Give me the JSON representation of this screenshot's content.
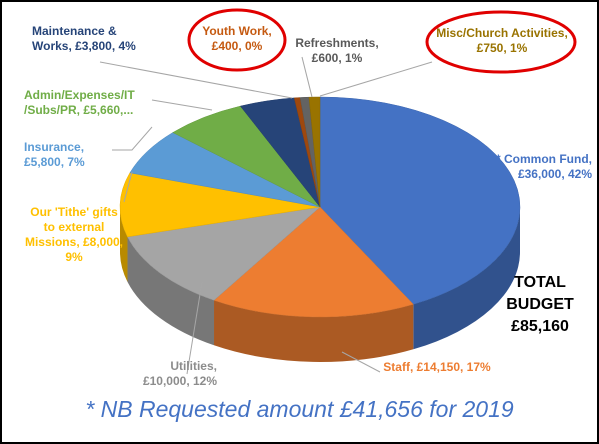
{
  "chart_data": {
    "type": "pie3d",
    "labels": [
      "* Common Fund, £36,000, 42%",
      "Staff, £14,150, 17%",
      "Utilities, £10,000, 12%",
      "Our 'Tithe' gifts to external Missions, £8,000, 9%",
      "Insurance, £5,800, 7%",
      "Admin/Expenses/IT /Subs/PR, £5,660,...",
      "Maintenance & Works, £3,800, 4%",
      "Youth Work, £400, 0%",
      "Refreshments, £600, 1%",
      "Misc/Church Activities, £750, 1%"
    ],
    "values": [
      36000,
      14150,
      10000,
      8000,
      5800,
      5660,
      3800,
      400,
      600,
      750
    ],
    "colors": [
      "#4472c4",
      "#ed7d31",
      "#a5a5a5",
      "#ffc000",
      "#5b9bd5",
      "#70ad47",
      "#264478",
      "#9e480e",
      "#636363",
      "#997300"
    ],
    "annotation": "TOTAL BUDGET £85,160",
    "footnote": "* NB Requested amount £41,656 for 2019"
  }
}
